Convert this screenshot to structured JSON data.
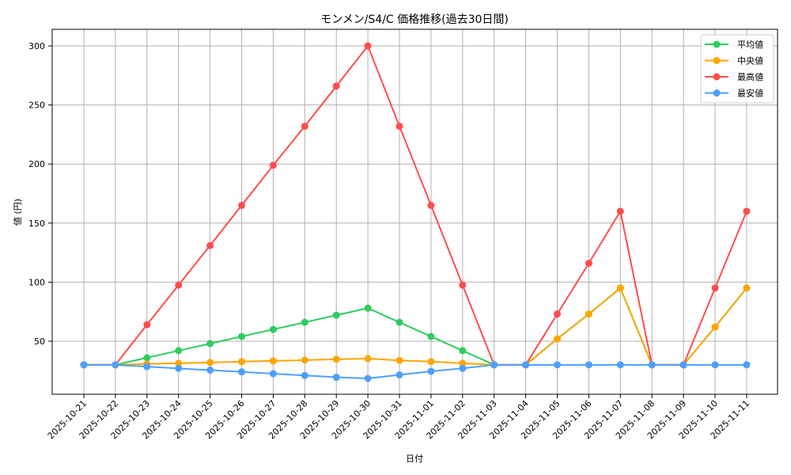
{
  "chart_data": {
    "type": "line",
    "title": "モンメン/S4/C 価格推移(過去30日間)",
    "xlabel": "日付",
    "ylabel": "値 (円)",
    "ylim": [
      8,
      314
    ],
    "yticks": [
      50,
      100,
      150,
      200,
      250,
      300
    ],
    "grid": true,
    "legend_position": "upper right",
    "categories": [
      "2025-10-21",
      "2025-10-22",
      "2025-10-23",
      "2025-10-24",
      "2025-10-25",
      "2025-10-26",
      "2025-10-27",
      "2025-10-28",
      "2025-10-29",
      "2025-10-30",
      "2025-10-31",
      "2025-11-01",
      "2025-11-02",
      "2025-11-03",
      "2025-11-04",
      "2025-11-05",
      "2025-11-06",
      "2025-11-07",
      "2025-11-08",
      "2025-11-09",
      "2025-11-10",
      "2025-11-11"
    ],
    "series": [
      {
        "name": "平均値",
        "color": "#2ecc5f",
        "values": [
          30,
          30,
          36,
          42,
          48,
          54,
          60,
          66,
          72,
          78,
          66,
          54,
          42,
          30,
          30,
          52,
          73,
          95,
          30,
          30,
          62,
          95
        ]
      },
      {
        "name": "中央値",
        "color": "#ffa500",
        "values": [
          30,
          30,
          30.7,
          31.3,
          32,
          32.7,
          33.3,
          34,
          34.7,
          35.3,
          33.7,
          32.7,
          31.3,
          30,
          30,
          52,
          73,
          95,
          30,
          30,
          62,
          95
        ]
      },
      {
        "name": "最高値",
        "color": "#ff4d4d",
        "values": [
          30,
          30,
          64,
          97.5,
          131,
          165,
          199,
          232,
          266,
          300,
          232,
          165,
          97.5,
          30,
          30,
          73,
          116,
          160,
          30,
          30,
          95,
          160
        ]
      },
      {
        "name": "最安値",
        "color": "#4d9fff",
        "values": [
          30,
          30,
          28.5,
          27,
          25.5,
          24,
          22.5,
          21,
          19.5,
          18.5,
          21.5,
          24.5,
          27,
          30,
          30,
          30,
          30,
          30,
          30,
          30,
          30,
          30
        ]
      }
    ]
  }
}
